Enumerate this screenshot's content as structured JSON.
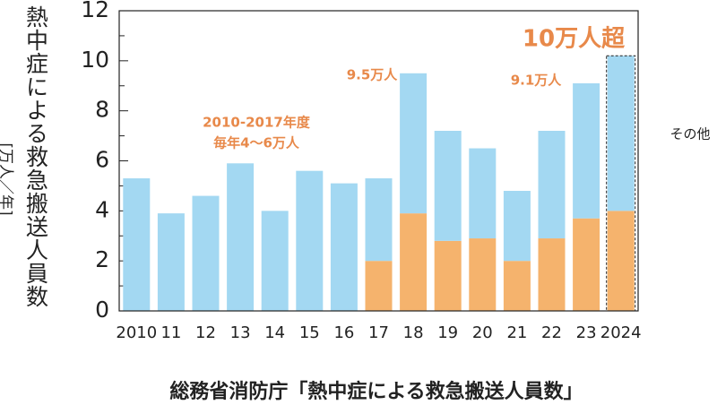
{
  "chart_data": {
    "type": "stacked_bar",
    "y_label": "熱中症による救急搬送人員数",
    "y_unit": "[万人／年]",
    "source": "総務省消防庁「熱中症による救急搬送人員数」",
    "categories": [
      "2010",
      "11",
      "12",
      "13",
      "14",
      "15",
      "16",
      "17",
      "18",
      "19",
      "20",
      "21",
      "22",
      "23",
      "2024"
    ],
    "series": [
      {
        "color": "#f5b36d",
        "values": [
          null,
          null,
          null,
          null,
          null,
          null,
          null,
          2.0,
          3.9,
          2.8,
          2.9,
          2.0,
          2.9,
          3.7,
          4.0
        ]
      },
      {
        "name": "その他",
        "color": "#a3d8f2",
        "values": [
          5.3,
          3.9,
          4.6,
          5.9,
          4.0,
          5.6,
          5.1,
          3.3,
          5.6,
          4.4,
          3.6,
          2.8,
          4.3,
          5.4,
          6.2
        ]
      }
    ],
    "annotations": [
      "10万人超",
      "9.5万人",
      "9.1万人",
      "2010-2017年度",
      "毎年4〜6万人"
    ],
    "ylim": [
      0,
      12
    ],
    "yticks": [
      0,
      2,
      4,
      6,
      8,
      10,
      12
    ],
    "minor_yticks": [
      1,
      3,
      5,
      7,
      9,
      11
    ]
  }
}
